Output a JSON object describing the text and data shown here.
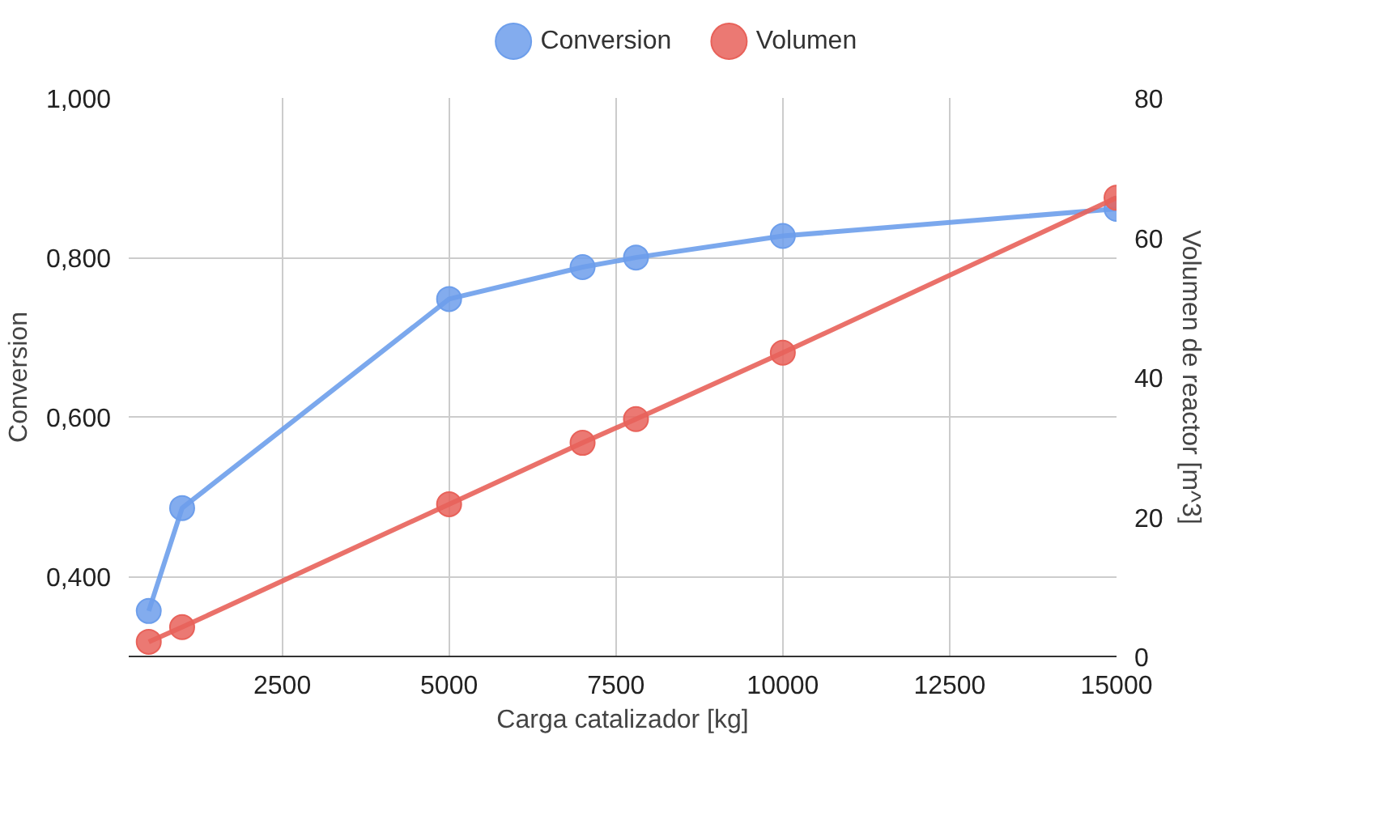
{
  "chart_data": {
    "type": "line",
    "xlabel": "Carga catalizador [kg]",
    "ylabel": "Conversion",
    "y2label": "Volumen de reactor [m^3]",
    "xlim": [
      200,
      15000
    ],
    "xticks": [
      2500,
      5000,
      7500,
      10000,
      12500,
      15000
    ],
    "ylim": [
      0.3,
      1.0
    ],
    "yticks": [
      {
        "value": 0.4,
        "label": "0,400"
      },
      {
        "value": 0.6,
        "label": "0,600"
      },
      {
        "value": 0.8,
        "label": "0,800"
      },
      {
        "value": 1.0,
        "label": "1,000"
      }
    ],
    "y2lim": [
      0,
      80
    ],
    "y2ticks": [
      0,
      20,
      40,
      60,
      80
    ],
    "grid": true,
    "legend": "top",
    "marker": "circle",
    "series": [
      {
        "name": "Conversion",
        "color": "#6d9eeb",
        "x": [
          500,
          1000,
          5000,
          7000,
          7800,
          10000,
          15000
        ],
        "values": [
          0.357,
          0.486,
          0.748,
          0.788,
          0.8,
          0.827,
          0.861
        ]
      },
      {
        "name": "Volumen",
        "color": "#e8625a",
        "axis": "y2",
        "x": [
          500,
          1000,
          5000,
          7000,
          7800,
          10000,
          15000
        ],
        "values": [
          2.1,
          4.2,
          21.8,
          30.6,
          34.0,
          43.5,
          65.7
        ]
      }
    ]
  }
}
